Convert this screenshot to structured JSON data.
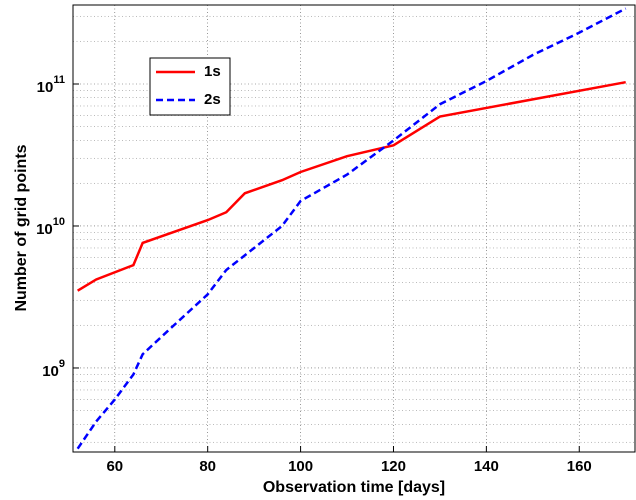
{
  "chart_data": {
    "type": "line",
    "x_label": "Observation time [days]",
    "y_label": "Number of grid points",
    "xlim": [
      51,
      172
    ],
    "xticks": [
      60,
      80,
      100,
      120,
      140,
      160
    ],
    "ylim": [
      256000000,
      360000000000
    ],
    "yticks": [
      {
        "value": 1000000000,
        "label": "10^9"
      },
      {
        "value": 10000000000,
        "label": "10^10"
      },
      {
        "value": 100000000000,
        "label": "10^11"
      }
    ],
    "log_y": true,
    "grid": true,
    "minor_grid": true,
    "legend": "upper-left",
    "series": [
      {
        "name": "1s",
        "color": "#ff0000",
        "dash": false,
        "x": [
          52,
          56,
          64,
          66,
          80,
          84,
          88,
          96,
          100,
          110,
          120,
          130,
          170
        ],
        "values": [
          3500000000,
          4200000000,
          5300000000,
          7600000000,
          11000000000,
          12500000000,
          17000000000,
          21000000000,
          24000000000,
          31000000000,
          37000000000,
          59000000000,
          103000000000
        ]
      },
      {
        "name": "2s",
        "color": "#0000ff",
        "dash": true,
        "x": [
          52,
          56,
          60,
          64,
          66,
          72,
          80,
          84,
          90,
          96,
          100,
          110,
          120,
          130,
          140,
          150,
          160,
          170
        ],
        "values": [
          270000000,
          420000000,
          600000000,
          900000000,
          1250000000,
          1900000000,
          3300000000,
          4900000000,
          7000000000,
          10000000000,
          15000000000,
          23000000000,
          40000000000,
          72000000000,
          105000000000,
          160000000000,
          230000000000,
          340000000000
        ]
      }
    ]
  }
}
